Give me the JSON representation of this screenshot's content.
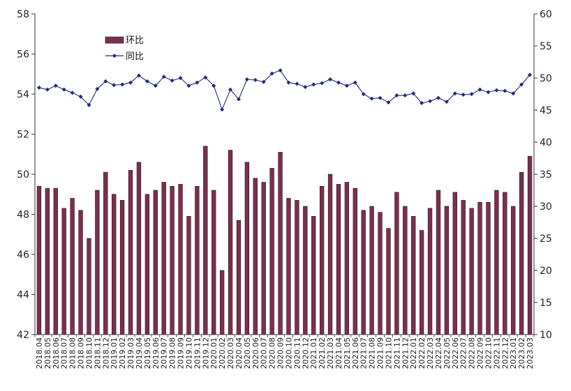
{
  "chart_data": {
    "type": "bar+line",
    "title": "",
    "xlabel": "",
    "ylabel": "",
    "legend": {
      "placement": "top-left",
      "entries": [
        "环比",
        "同比"
      ]
    },
    "x": [
      "2018.04",
      "2018.05",
      "2018.06",
      "2018.07",
      "2018.08",
      "2018.09",
      "2018.10",
      "2018.11",
      "2018.12",
      "2019.01",
      "2019.02",
      "2019.03",
      "2019.04",
      "2019.05",
      "2019.06",
      "2019.07",
      "2019.08",
      "2019.09",
      "2019.10",
      "2019.11",
      "2019.12",
      "2020.01",
      "2020.02",
      "2020.03",
      "2020.04",
      "2020.05",
      "2020.06",
      "2020.07",
      "2020.08",
      "2020.09",
      "2020.10",
      "2020.11",
      "2020.12",
      "2021.01",
      "2021.02",
      "2021.03",
      "2021.04",
      "2021.05",
      "2021.06",
      "2021.07",
      "2021.08",
      "2021.09",
      "2021.10",
      "2021.11",
      "2021.12",
      "2022.01",
      "2022.02",
      "2022.03",
      "2022.04",
      "2022.05",
      "2022.06",
      "2022.07",
      "2022.08",
      "2022.09",
      "2022.10",
      "2022.11",
      "2022.12",
      "2023.01",
      "2023.02",
      "2023.03"
    ],
    "y_left": {
      "lim": [
        42,
        58
      ],
      "ticks": [
        42,
        44,
        46,
        48,
        50,
        52,
        54,
        56,
        58
      ]
    },
    "y_right": {
      "lim": [
        10,
        60
      ],
      "ticks": [
        10,
        15,
        20,
        25,
        30,
        35,
        40,
        45,
        50,
        55,
        60
      ]
    },
    "series": [
      {
        "name": "环比",
        "kind": "bar",
        "axis": "left",
        "color": "#7b2f4f",
        "values": [
          49.4,
          49.3,
          49.3,
          48.3,
          48.8,
          48.2,
          46.8,
          49.2,
          50.1,
          49.0,
          48.7,
          50.2,
          50.6,
          49.0,
          49.2,
          49.6,
          49.4,
          49.5,
          47.9,
          49.4,
          51.4,
          49.2,
          45.2,
          51.2,
          47.7,
          50.6,
          49.8,
          49.6,
          50.3,
          51.1,
          48.8,
          48.7,
          48.4,
          47.9,
          49.4,
          50.0,
          49.5,
          49.6,
          49.3,
          48.2,
          48.4,
          48.1,
          47.3,
          49.1,
          48.4,
          47.9,
          47.2,
          48.3,
          49.2,
          48.4,
          49.1,
          48.7,
          48.3,
          48.6,
          48.6,
          49.2,
          49.1,
          48.4,
          50.1,
          50.9
        ]
      },
      {
        "name": "同比",
        "kind": "line",
        "axis": "right",
        "color": "#1f2a7a",
        "values": [
          48.5,
          48.2,
          48.8,
          48.2,
          47.7,
          47.1,
          45.8,
          48.3,
          49.5,
          48.9,
          49.0,
          49.3,
          50.4,
          49.5,
          48.8,
          50.2,
          49.6,
          50.0,
          48.8,
          49.3,
          50.1,
          48.8,
          45.1,
          48.2,
          46.7,
          49.8,
          49.7,
          49.4,
          50.7,
          51.2,
          49.3,
          49.1,
          48.6,
          49.0,
          49.2,
          49.8,
          49.3,
          48.8,
          49.3,
          47.5,
          46.8,
          46.9,
          46.2,
          47.3,
          47.3,
          47.6,
          46.1,
          46.4,
          46.9,
          46.3,
          47.6,
          47.4,
          47.5,
          48.2,
          47.8,
          48.1,
          48.0,
          47.6,
          49.0,
          50.5
        ]
      }
    ]
  }
}
